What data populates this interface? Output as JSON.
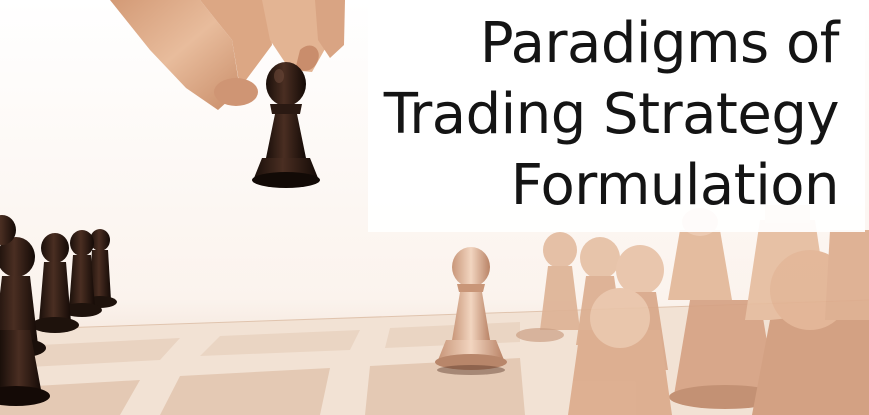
{
  "title": {
    "lines": [
      "Paradigms of",
      "Trading Strategy",
      "Formulation"
    ]
  },
  "colors": {
    "text": "#141414",
    "panel": "#ffffff",
    "dark_piece": "#2b1a12",
    "light_piece": "#e7c3a7",
    "skin": "#e2b18f",
    "board_light": "#f3e3d6",
    "board_dark": "#e6cdb9"
  }
}
